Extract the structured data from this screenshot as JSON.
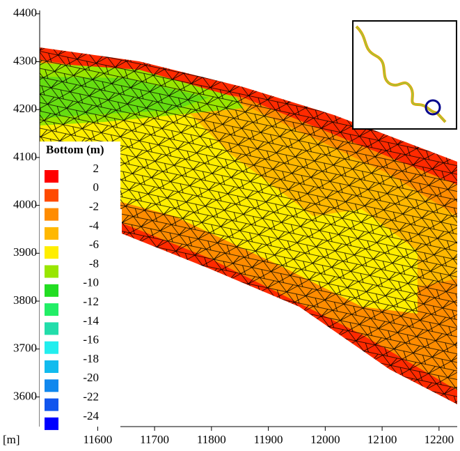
{
  "map": {
    "x_unit": "[m]",
    "xlim": [
      11498,
      12232
    ],
    "ylim": [
      3538,
      4407
    ],
    "xticks": [
      11600,
      11700,
      11800,
      11900,
      12000,
      12100,
      12200
    ],
    "yticks": [
      3600,
      3700,
      3800,
      3900,
      4000,
      4100,
      4200,
      4300,
      4400
    ],
    "legend": {
      "title": "Bottom (m)",
      "items": [
        {
          "label": 2,
          "color": "#ff0000"
        },
        {
          "label": 0,
          "color": "#ff4a00"
        },
        {
          "label": -2,
          "color": "#ff8c00"
        },
        {
          "label": -4,
          "color": "#ffb800"
        },
        {
          "label": -6,
          "color": "#ffee00"
        },
        {
          "label": -8,
          "color": "#99e600"
        },
        {
          "label": -10,
          "color": "#22dd22"
        },
        {
          "label": -12,
          "color": "#22ee66"
        },
        {
          "label": -14,
          "color": "#22ddaa"
        },
        {
          "label": -16,
          "color": "#22eeee"
        },
        {
          "label": -18,
          "color": "#11bbee"
        },
        {
          "label": -20,
          "color": "#1188ee"
        },
        {
          "label": -22,
          "color": "#1155ee"
        },
        {
          "label": -24,
          "color": "#0000ff"
        }
      ]
    }
  }
}
